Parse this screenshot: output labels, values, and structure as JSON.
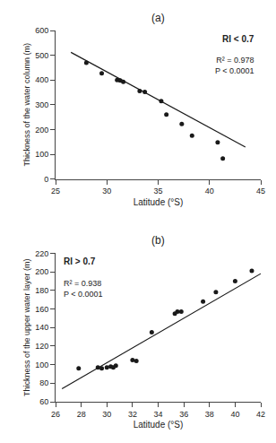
{
  "chart_data": [
    {
      "type": "scatter",
      "title": "(a)",
      "x_label": "Latitude (°S)",
      "y_label": "Thickness of the water column (m)",
      "xlim": [
        25,
        45
      ],
      "ylim": [
        0,
        600
      ],
      "xticks": [
        25,
        30,
        35,
        40,
        45
      ],
      "yticks": [
        0,
        100,
        200,
        300,
        400,
        500,
        600
      ],
      "grid": false,
      "annotations": [
        "RI < 0.7",
        "R² = 0.978\nP < 0.0001"
      ],
      "series": [
        {
          "type": "scatter",
          "marker": "circle",
          "color": "#1a1a1a",
          "x": [
            28.0,
            29.5,
            31.0,
            31.3,
            31.6,
            33.2,
            33.7,
            35.3,
            35.8,
            37.3,
            38.3,
            40.8,
            41.3
          ],
          "values": [
            470,
            427,
            400,
            398,
            393,
            355,
            352,
            315,
            260,
            222,
            175,
            148,
            83
          ]
        },
        {
          "type": "line",
          "line_style": "solid",
          "color": "#1a1a1a",
          "x": [
            26.5,
            43.5
          ],
          "values": [
            511.75,
            129.25
          ]
        }
      ]
    },
    {
      "type": "scatter",
      "title": "(b)",
      "x_label": "Latitude (°S)",
      "y_label": "Thickness of the upper water layer (m)",
      "xlim": [
        26,
        42
      ],
      "ylim": [
        60,
        220
      ],
      "xticks": [
        26,
        28,
        30,
        32,
        34,
        36,
        38,
        40,
        42
      ],
      "yticks": [
        60,
        80,
        100,
        120,
        140,
        160,
        180,
        200,
        220
      ],
      "grid": false,
      "annotations": [
        "RI > 0.7",
        "R² = 0.938\nP < 0.0001"
      ],
      "series": [
        {
          "type": "scatter",
          "marker": "circle",
          "color": "#1a1a1a",
          "x": [
            27.8,
            29.3,
            29.6,
            30.0,
            30.3,
            30.5,
            30.7,
            32.0,
            32.3,
            33.5,
            35.3,
            35.5,
            35.8,
            37.5,
            38.5,
            40.0,
            41.3
          ],
          "values": [
            96,
            97,
            96,
            97,
            98,
            97,
            99,
            105,
            104,
            135,
            155,
            157,
            157,
            168,
            178,
            190,
            201
          ]
        },
        {
          "type": "line",
          "line_style": "solid",
          "color": "#1a1a1a",
          "x": [
            26.5,
            42.0
          ],
          "values": [
            74,
            198
          ]
        }
      ]
    }
  ]
}
